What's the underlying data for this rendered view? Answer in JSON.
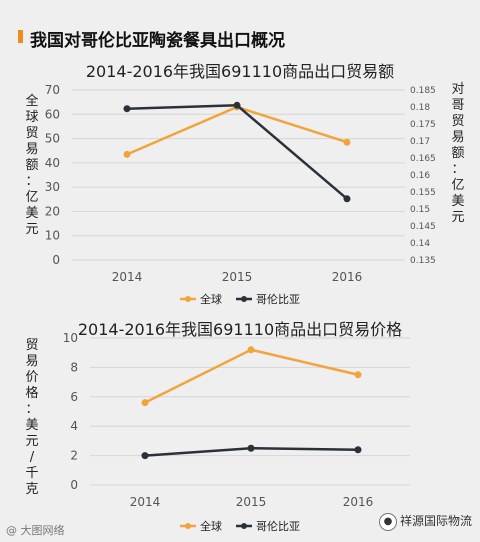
{
  "header": {
    "title": "我国对哥伦比亚陶瓷餐具出口概况"
  },
  "footer": {
    "watermark": "@ 大图网络",
    "brand": "祥源国际物流"
  },
  "chart_data": [
    {
      "type": "line",
      "title": "2014-2016年我国691110商品出口贸易额",
      "categories": [
        "2014",
        "2015",
        "2016"
      ],
      "ylabel": "全球贸易额：亿美元",
      "y2label": "对哥贸易额：亿美元",
      "ylim": [
        0,
        70
      ],
      "yticks": [
        "0",
        "10",
        "20",
        "30",
        "40",
        "50",
        "60",
        "70"
      ],
      "y2lim": [
        0.135,
        0.185
      ],
      "y2ticks": [
        "0.135",
        "0.14",
        "0.145",
        "0.15",
        "0.155",
        "0.16",
        "0.165",
        "0.17",
        "0.175",
        "0.18",
        "0.185"
      ],
      "legend_position": "bottom",
      "series": [
        {
          "name": "全球",
          "axis": "left",
          "color": "#f0a53c",
          "values": [
            43.5,
            63,
            48.5
          ]
        },
        {
          "name": "哥伦比亚",
          "axis": "right",
          "color": "#2b313b",
          "values": [
            0.1795,
            0.1805,
            0.153
          ]
        }
      ]
    },
    {
      "type": "line",
      "title": "2014-2016年我国691110商品出口贸易价格",
      "categories": [
        "2014",
        "2015",
        "2016"
      ],
      "ylabel": "贸易价格：美元/千克",
      "ylim": [
        0,
        10
      ],
      "yticks": [
        "0",
        "2",
        "4",
        "6",
        "8",
        "10"
      ],
      "legend_position": "bottom",
      "series": [
        {
          "name": "全球",
          "color": "#f0a53c",
          "values": [
            5.6,
            9.2,
            7.5
          ]
        },
        {
          "name": "哥伦比亚",
          "color": "#2b313b",
          "values": [
            2.0,
            2.5,
            2.4
          ]
        }
      ]
    }
  ]
}
